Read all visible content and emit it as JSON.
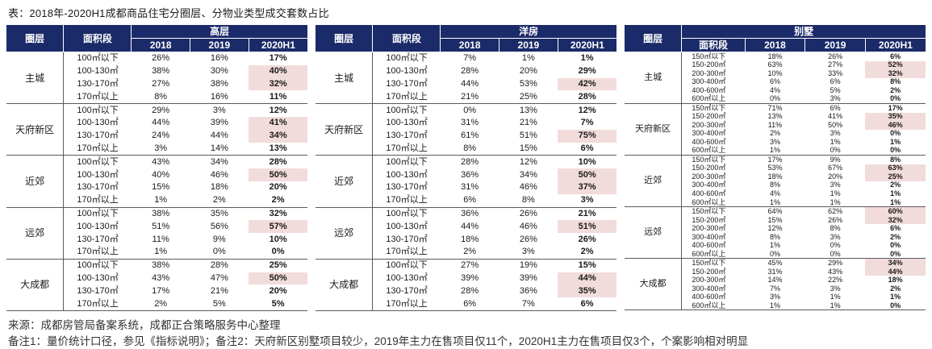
{
  "title": "表：2018年-2020H1成都商品住宅分圈层、分物业类型成交套数占比",
  "colors": {
    "header_bg": "#1b2a68",
    "red": "#c00000",
    "green": "#00a651",
    "highlight": "#f2dcdb",
    "text": "#1a1a1a"
  },
  "headers": {
    "circle": "圈层",
    "area": "面积段",
    "years": [
      "2018",
      "2019",
      "2020H1"
    ]
  },
  "tables": [
    {
      "id": "highrise",
      "type_label": "高层",
      "compact": false,
      "groups": [
        {
          "circle": "主城",
          "rows": [
            {
              "seg": "100㎡以下",
              "v2018": "26%",
              "v2019": "16%",
              "v2020h1": "17%",
              "color_2020h1": "red",
              "hl": false
            },
            {
              "seg": "100-130㎡",
              "v2018": "38%",
              "v2019": "30%",
              "v2020h1": "40%",
              "color_2020h1": "red",
              "hl": true
            },
            {
              "seg": "130-170㎡",
              "v2018": "27%",
              "v2019": "38%",
              "v2020h1": "32%",
              "color_2020h1": "green",
              "hl": true
            },
            {
              "seg": "170㎡以上",
              "v2018": "8%",
              "v2019": "16%",
              "v2020h1": "11%",
              "color_2020h1": "green",
              "hl": false
            }
          ]
        },
        {
          "circle": "天府新区",
          "rows": [
            {
              "seg": "100㎡以下",
              "v2018": "29%",
              "v2019": "3%",
              "v2020h1": "12%",
              "color_2020h1": "red",
              "hl": false
            },
            {
              "seg": "100-130㎡",
              "v2018": "44%",
              "v2019": "39%",
              "v2020h1": "41%",
              "color_2020h1": "red",
              "hl": true
            },
            {
              "seg": "130-170㎡",
              "v2018": "24%",
              "v2019": "44%",
              "v2020h1": "34%",
              "color_2020h1": "green",
              "hl": true
            },
            {
              "seg": "170㎡以上",
              "v2018": "3%",
              "v2019": "14%",
              "v2020h1": "13%",
              "color_2020h1": "green",
              "hl": false
            }
          ]
        },
        {
          "circle": "近郊",
          "rows": [
            {
              "seg": "100㎡以下",
              "v2018": "43%",
              "v2019": "34%",
              "v2020h1": "28%",
              "color_2020h1": "green",
              "hl": false
            },
            {
              "seg": "100-130㎡",
              "v2018": "40%",
              "v2019": "46%",
              "v2020h1": "50%",
              "color_2020h1": "red",
              "hl": true
            },
            {
              "seg": "130-170㎡",
              "v2018": "15%",
              "v2019": "18%",
              "v2020h1": "20%",
              "color_2020h1": "red",
              "hl": false
            },
            {
              "seg": "170㎡以上",
              "v2018": "1%",
              "v2019": "2%",
              "v2020h1": "2%",
              "color_2020h1": "black",
              "hl": false
            }
          ]
        },
        {
          "circle": "远郊",
          "rows": [
            {
              "seg": "100㎡以下",
              "v2018": "38%",
              "v2019": "35%",
              "v2020h1": "32%",
              "color_2020h1": "green",
              "hl": false
            },
            {
              "seg": "100-130㎡",
              "v2018": "51%",
              "v2019": "56%",
              "v2020h1": "57%",
              "color_2020h1": "red",
              "hl": true
            },
            {
              "seg": "130-170㎡",
              "v2018": "11%",
              "v2019": "9%",
              "v2020h1": "10%",
              "color_2020h1": "red",
              "hl": false
            },
            {
              "seg": "170㎡以上",
              "v2018": "1%",
              "v2019": "0%",
              "v2020h1": "0%",
              "color_2020h1": "black",
              "hl": false
            }
          ]
        },
        {
          "circle": "大成都",
          "rows": [
            {
              "seg": "100㎡以下",
              "v2018": "38%",
              "v2019": "28%",
              "v2020h1": "25%",
              "color_2020h1": "green",
              "hl": false
            },
            {
              "seg": "100-130㎡",
              "v2018": "43%",
              "v2019": "47%",
              "v2020h1": "50%",
              "color_2020h1": "red",
              "hl": true
            },
            {
              "seg": "130-170㎡",
              "v2018": "17%",
              "v2019": "21%",
              "v2020h1": "20%",
              "color_2020h1": "green",
              "hl": false
            },
            {
              "seg": "170㎡以上",
              "v2018": "2%",
              "v2019": "5%",
              "v2020h1": "5%",
              "color_2020h1": "black",
              "hl": false
            }
          ]
        }
      ]
    },
    {
      "id": "garden",
      "type_label": "洋房",
      "compact": false,
      "groups": [
        {
          "circle": "主城",
          "rows": [
            {
              "seg": "100㎡以下",
              "v2018": "7%",
              "v2019": "1%",
              "v2020h1": "1%",
              "color_2020h1": "black",
              "hl": false
            },
            {
              "seg": "100-130㎡",
              "v2018": "28%",
              "v2019": "20%",
              "v2020h1": "29%",
              "color_2020h1": "red",
              "hl": false
            },
            {
              "seg": "130-170㎡",
              "v2018": "44%",
              "v2019": "53%",
              "v2020h1": "42%",
              "color_2020h1": "green",
              "hl": true
            },
            {
              "seg": "170㎡以上",
              "v2018": "21%",
              "v2019": "25%",
              "v2020h1": "28%",
              "color_2020h1": "red",
              "hl": false
            }
          ]
        },
        {
          "circle": "天府新区",
          "rows": [
            {
              "seg": "100㎡以下",
              "v2018": "0%",
              "v2019": "13%",
              "v2020h1": "12%",
              "color_2020h1": "green",
              "hl": false
            },
            {
              "seg": "100-130㎡",
              "v2018": "31%",
              "v2019": "21%",
              "v2020h1": "7%",
              "color_2020h1": "green",
              "hl": false
            },
            {
              "seg": "130-170㎡",
              "v2018": "61%",
              "v2019": "51%",
              "v2020h1": "75%",
              "color_2020h1": "red",
              "hl": true
            },
            {
              "seg": "170㎡以上",
              "v2018": "8%",
              "v2019": "15%",
              "v2020h1": "6%",
              "color_2020h1": "green",
              "hl": false
            }
          ]
        },
        {
          "circle": "近郊",
          "rows": [
            {
              "seg": "100㎡以下",
              "v2018": "28%",
              "v2019": "12%",
              "v2020h1": "10%",
              "color_2020h1": "green",
              "hl": false
            },
            {
              "seg": "100-130㎡",
              "v2018": "36%",
              "v2019": "34%",
              "v2020h1": "50%",
              "color_2020h1": "red",
              "hl": true
            },
            {
              "seg": "130-170㎡",
              "v2018": "31%",
              "v2019": "46%",
              "v2020h1": "37%",
              "color_2020h1": "green",
              "hl": true
            },
            {
              "seg": "170㎡以上",
              "v2018": "6%",
              "v2019": "8%",
              "v2020h1": "3%",
              "color_2020h1": "green",
              "hl": false
            }
          ]
        },
        {
          "circle": "远郊",
          "rows": [
            {
              "seg": "100㎡以下",
              "v2018": "36%",
              "v2019": "26%",
              "v2020h1": "21%",
              "color_2020h1": "green",
              "hl": false
            },
            {
              "seg": "100-130㎡",
              "v2018": "44%",
              "v2019": "46%",
              "v2020h1": "51%",
              "color_2020h1": "red",
              "hl": true
            },
            {
              "seg": "130-170㎡",
              "v2018": "18%",
              "v2019": "26%",
              "v2020h1": "26%",
              "color_2020h1": "black",
              "hl": false
            },
            {
              "seg": "170㎡以上",
              "v2018": "2%",
              "v2019": "3%",
              "v2020h1": "2%",
              "color_2020h1": "green",
              "hl": false
            }
          ]
        },
        {
          "circle": "大成都",
          "rows": [
            {
              "seg": "100㎡以下",
              "v2018": "27%",
              "v2019": "19%",
              "v2020h1": "15%",
              "color_2020h1": "green",
              "hl": false
            },
            {
              "seg": "100-130㎡",
              "v2018": "39%",
              "v2019": "39%",
              "v2020h1": "44%",
              "color_2020h1": "red",
              "hl": true
            },
            {
              "seg": "130-170㎡",
              "v2018": "28%",
              "v2019": "36%",
              "v2020h1": "35%",
              "color_2020h1": "green",
              "hl": true
            },
            {
              "seg": "170㎡以上",
              "v2018": "6%",
              "v2019": "7%",
              "v2020h1": "6%",
              "color_2020h1": "green",
              "hl": false
            }
          ]
        }
      ]
    },
    {
      "id": "villa",
      "type_label": "别墅",
      "compact": true,
      "groups": [
        {
          "circle": "主城",
          "rows": [
            {
              "seg": "150㎡以下",
              "v2018": "18%",
              "v2019": "26%",
              "v2020h1": "6%",
              "color_2020h1": "green",
              "hl": false
            },
            {
              "seg": "150-200㎡",
              "v2018": "63%",
              "v2019": "27%",
              "v2020h1": "52%",
              "color_2020h1": "red",
              "hl": true
            },
            {
              "seg": "200-300㎡",
              "v2018": "10%",
              "v2019": "33%",
              "v2020h1": "32%",
              "color_2020h1": "green",
              "hl": true
            },
            {
              "seg": "300-400㎡",
              "v2018": "6%",
              "v2019": "6%",
              "v2020h1": "8%",
              "color_2020h1": "red",
              "hl": false
            },
            {
              "seg": "400-600㎡",
              "v2018": "4%",
              "v2019": "5%",
              "v2020h1": "2%",
              "color_2020h1": "green",
              "hl": false
            },
            {
              "seg": "600㎡以上",
              "v2018": "0%",
              "v2019": "3%",
              "v2020h1": "0%",
              "color_2020h1": "green",
              "hl": false
            }
          ]
        },
        {
          "circle": "天府新区",
          "rows": [
            {
              "seg": "150㎡以下",
              "v2018": "71%",
              "v2019": "6%",
              "v2020h1": "17%",
              "color_2020h1": "red",
              "hl": false
            },
            {
              "seg": "150-200㎡",
              "v2018": "13%",
              "v2019": "41%",
              "v2020h1": "35%",
              "color_2020h1": "green",
              "hl": true
            },
            {
              "seg": "200-300㎡",
              "v2018": "11%",
              "v2019": "50%",
              "v2020h1": "46%",
              "color_2020h1": "green",
              "hl": true
            },
            {
              "seg": "300-400㎡",
              "v2018": "2%",
              "v2019": "3%",
              "v2020h1": "0%",
              "color_2020h1": "green",
              "hl": false
            },
            {
              "seg": "400-600㎡",
              "v2018": "3%",
              "v2019": "1%",
              "v2020h1": "1%",
              "color_2020h1": "black",
              "hl": false
            },
            {
              "seg": "600㎡以上",
              "v2018": "1%",
              "v2019": "0%",
              "v2020h1": "0%",
              "color_2020h1": "black",
              "hl": false
            }
          ]
        },
        {
          "circle": "近郊",
          "rows": [
            {
              "seg": "150㎡以下",
              "v2018": "17%",
              "v2019": "9%",
              "v2020h1": "8%",
              "color_2020h1": "green",
              "hl": false
            },
            {
              "seg": "150-200㎡",
              "v2018": "53%",
              "v2019": "67%",
              "v2020h1": "63%",
              "color_2020h1": "green",
              "hl": true
            },
            {
              "seg": "200-300㎡",
              "v2018": "18%",
              "v2019": "20%",
              "v2020h1": "25%",
              "color_2020h1": "red",
              "hl": true
            },
            {
              "seg": "300-400㎡",
              "v2018": "8%",
              "v2019": "3%",
              "v2020h1": "2%",
              "color_2020h1": "green",
              "hl": false
            },
            {
              "seg": "400-600㎡",
              "v2018": "4%",
              "v2019": "1%",
              "v2020h1": "1%",
              "color_2020h1": "black",
              "hl": false
            },
            {
              "seg": "600㎡以上",
              "v2018": "1%",
              "v2019": "1%",
              "v2020h1": "1%",
              "color_2020h1": "black",
              "hl": false
            }
          ]
        },
        {
          "circle": "远郊",
          "rows": [
            {
              "seg": "150㎡以下",
              "v2018": "64%",
              "v2019": "62%",
              "v2020h1": "60%",
              "color_2020h1": "green",
              "hl": true
            },
            {
              "seg": "150-200㎡",
              "v2018": "15%",
              "v2019": "26%",
              "v2020h1": "32%",
              "color_2020h1": "red",
              "hl": true
            },
            {
              "seg": "200-300㎡",
              "v2018": "12%",
              "v2019": "8%",
              "v2020h1": "6%",
              "color_2020h1": "green",
              "hl": false
            },
            {
              "seg": "300-400㎡",
              "v2018": "8%",
              "v2019": "3%",
              "v2020h1": "2%",
              "color_2020h1": "green",
              "hl": false
            },
            {
              "seg": "400-600㎡",
              "v2018": "1%",
              "v2019": "0%",
              "v2020h1": "0%",
              "color_2020h1": "black",
              "hl": false
            },
            {
              "seg": "600㎡以上",
              "v2018": "0%",
              "v2019": "0%",
              "v2020h1": "0%",
              "color_2020h1": "black",
              "hl": false
            }
          ]
        },
        {
          "circle": "大成都",
          "rows": [
            {
              "seg": "150㎡以下",
              "v2018": "45%",
              "v2019": "29%",
              "v2020h1": "34%",
              "color_2020h1": "red",
              "hl": true
            },
            {
              "seg": "150-200㎡",
              "v2018": "31%",
              "v2019": "43%",
              "v2020h1": "44%",
              "color_2020h1": "red",
              "hl": true
            },
            {
              "seg": "200-300㎡",
              "v2018": "14%",
              "v2019": "22%",
              "v2020h1": "18%",
              "color_2020h1": "green",
              "hl": false
            },
            {
              "seg": "300-400㎡",
              "v2018": "7%",
              "v2019": "3%",
              "v2020h1": "2%",
              "color_2020h1": "green",
              "hl": false
            },
            {
              "seg": "400-600㎡",
              "v2018": "3%",
              "v2019": "1%",
              "v2020h1": "1%",
              "color_2020h1": "black",
              "hl": false
            },
            {
              "seg": "600㎡以上",
              "v2018": "1%",
              "v2019": "1%",
              "v2020h1": "0%",
              "color_2020h1": "green",
              "hl": false
            }
          ]
        }
      ]
    }
  ],
  "footer": {
    "source": "来源：成都房管局备案系统，成都正合策略服务中心整理",
    "note": "备注1：量价统计口径，参见《指标说明》；备注2：天府新区别墅项目较少，2019年主力在售项目仅11个，2020H1主力在售项目仅3个，个案影响相对明显"
  }
}
